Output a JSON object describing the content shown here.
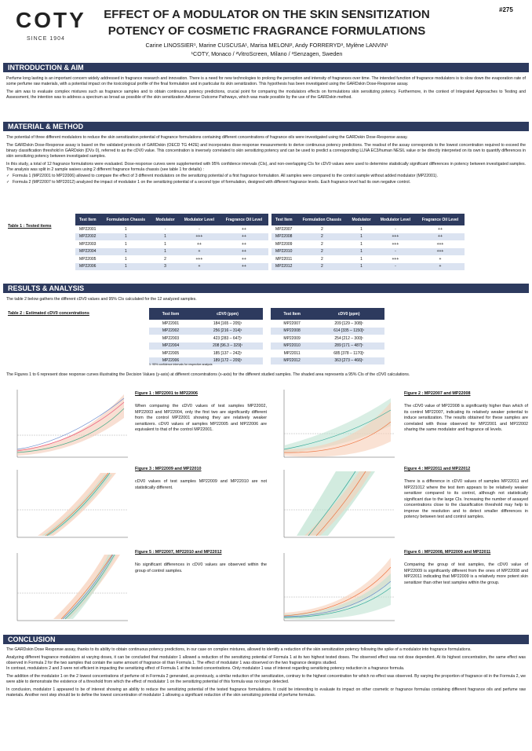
{
  "header": {
    "logo": "COTY",
    "logo_since": "SINCE 1904",
    "title_lines": [
      "EFFECT OF A MODULATOR ON THE SKIN SENSITIZATION",
      "POTENCY OF COSMETIC FRAGRANCE FORMULATIONS"
    ],
    "poster_number": "#275",
    "authors": "Carine LINOSSIER¹, Marine CUSCUSA¹, Marisa MELONI², Andy FORRERYD³, Mylène LANVIN¹",
    "affiliations": "¹COTY, Monaco / ²VitroScreen, Milano / ³Senzagen, Sweden"
  },
  "intro": {
    "heading": "INTRODUCTION & AIM",
    "paragraphs": [
      "Perfume long lasting is an important concern widely addressed in fragrance research and innovation. There is a need for new technologies to prolong the perception and intensity of fragrances over time. The intended function of fragrance modulators is to slow down the evaporation rate of some perfume raw materials, with a potential impact on the toxicological profile of the final formulation and in particular its skin sensitization. This hypothesis has been investigated using the GARDskin Dose-Response assay.",
      "The aim was to evaluate complex mixtures such as fragrance samples and to obtain continuous potency predictions, crucial point for comparing the modulators effects on formulations skin sensitizing potency. Furthermore, in the context of Integrated Approaches to Testing and Assessment, the intention was to address a spectrum as broad as possible of the skin sensitization Adverse Outcome Pathways, which was made possible by the use of the GARDskin method."
    ]
  },
  "method": {
    "heading": "MATERIAL & METHOD",
    "paragraphs": [
      "The potential of three different modulators to reduce the skin sensitization potential of fragrance formulations containing different concentrations of fragrance oils were investigated using the GARDskin Dose-Response assay.",
      "The GARDskin Dose-Response assay is based on the validated protocols of GARDskin (OECD TG 442E) and incorporates dose-response measurements to derive continuous potency predictions. The readout of the assay corresponds to the lowest concentration required to exceed the binary classification threshold in GARDskin (DV≥ 0), referred to as the cDV0 value. This concentration is inversely correlated to skin sensitizing potency and can be used to predict a corresponding LLNA EC3/human NESIL value or be directly interpreted on its own to quantify differences in skin sensitizing potency between investigated samples.",
      "In this study, a total of 12 fragrance formulations were evaluated. Dose-response curves were supplemented with 95% confidence intervals (CIs), and non-overlapping CIs for cDV0 values were used to determine statistically significant differences in potency between investigated samples. The analysis was split in 2 sample waives using 2 different fragrance formula chassis (see table 1 for details) :"
    ],
    "bullets": [
      "Formula 1 (MP22001 to MP22006) allowed to compare the effect of 3 different modulators on the sensitizing potential of a first fragrance formulation. All samples were compared to the control sample without added modulator (MP22001).",
      "Formula 2 (MP22007 to MP22012) analyzed the impact of modulator 1 on the sensitizing potential of a second type of formulation, designed with different fragrance levels. Each fragrance level had its own negative control."
    ]
  },
  "table1": {
    "label": "Table 1 : Tested items",
    "columns": [
      "Test Item",
      "Formulation Chassis",
      "Modulator",
      "Modulator Level",
      "Fragrance Oil Level"
    ],
    "rows": [
      [
        "MP22001",
        "1",
        "-",
        "-",
        "++"
      ],
      [
        "MP22002",
        "1",
        "1",
        "+++",
        "++"
      ],
      [
        "MP22003",
        "1",
        "1",
        "++",
        "++"
      ],
      [
        "MP22004",
        "1",
        "1",
        "+",
        "++"
      ],
      [
        "MP22005",
        "1",
        "2",
        "+++",
        "++"
      ],
      [
        "MP22006",
        "1",
        "3",
        "+",
        "++"
      ],
      [
        "MP22007",
        "2",
        "1",
        "-",
        "++"
      ],
      [
        "MP22008",
        "2",
        "1",
        "+++",
        "++"
      ],
      [
        "MP22009",
        "2",
        "1",
        "+++",
        "+++"
      ],
      [
        "MP22010",
        "2",
        "1",
        "-",
        "+++"
      ],
      [
        "MP22011",
        "2",
        "1",
        "+++",
        "+"
      ],
      [
        "MP22012",
        "2",
        "1",
        "-",
        "+"
      ]
    ]
  },
  "results": {
    "heading": "RESULTS & ANALYSIS",
    "intro": "The table 2 below gathers the different cDV0 values and 95% CIs calculated for the 12 analyzed samples.",
    "figures_intro": "The Figures 1 to 6 represent dose response curves illustrating the Decision Values (y-axis) at different concentrations (x-axis) for the different studied samples. The shaded area represents a 95% CIs of the cDV0 calculations."
  },
  "table2": {
    "label": "Table 2 : Estimated cDV0 concentrations",
    "columns": [
      "Test Item",
      "cDV0 (ppm)"
    ],
    "rows": [
      [
        "MP22001",
        "184 [165 – 205]¹"
      ],
      [
        "MP22002",
        "256 [216 – 314]¹"
      ],
      [
        "MP22003",
        "423 [283 – 647]¹"
      ],
      [
        "MP22004",
        "208 [96.3 – 329]¹"
      ],
      [
        "MP22005",
        "185 [137 – 242]¹"
      ],
      [
        "MP22006",
        "189 [172 – 209]¹"
      ],
      [
        "MP22007",
        "209 [129 – 308]¹"
      ],
      [
        "MP22008",
        "614 [335 – 1150]¹"
      ],
      [
        "MP22009",
        "254 [212 – 300]¹"
      ],
      [
        "MP22010",
        "289 [171 – 487]¹"
      ],
      [
        "MP22011",
        "685 [378 – 1170]¹"
      ],
      [
        "MP22012",
        "363 [273 – 466]¹"
      ]
    ],
    "footnote": "1: 95% confidence intervals for respective analysis"
  },
  "figures": [
    {
      "caption": "Figure 1 : MP22001 to MP22006",
      "text": "When comparing the cDV0 values of test samples MP22002, MP22003 and MP22004, only the first two are significantly different from the control MP22001 showing they are relatively weaker sensitizers. cDV0 values of samples MP22005 and MP22006 are equivalent to that of the control MP22001."
    },
    {
      "caption": "Figure 2 : MP22007 and MP22008",
      "text": "The cDV0 value of MP22008 is significantly higher than which of its control MP22007, indicating its relatively weaker potential to induce sensitization. The results obtained for these samples are correlated with those observed for MP22001 and MP22002 sharing the same modulator and fragrance oil levels."
    },
    {
      "caption": "Figure 3 : MP22009 and MP22010",
      "text": "cDV0 values of test samples MP22009 and MP22010 are not statistically different."
    },
    {
      "caption": "Figure 4 : MP22011 and MP22012",
      "text": "There is a difference in cDV0 values of samples MP22011 and MP221012 where the test item appears to be relatively weaker sensitizer compared to its control, although not statistically significant due to the large CIs. Increasing the number of assayed concentrations close to the classification threshold may help to improve the resolution and to detect smaller differences in potency between test and control samples."
    },
    {
      "caption": "Figure 5 : MP22007, MP22010 and MP22012",
      "text": "No significant differences in cDV0 values are observed within the group of control samples."
    },
    {
      "caption": "Figure 6 : MP22008, MP22009 and MP22011",
      "text": "Comparing the group of test samples, the cDV0 value of MP22009 is significantly different from the ones of MP22008 and MP22011 indicating that MP22009 is a relatively more potent skin sensitizer than other test samples within the group."
    }
  ],
  "conclusion": {
    "heading": "CONCLUSION",
    "paragraphs": [
      "The GARDskin Dose Response assay, thanks to its ability to obtain continuous potency predictions, in our case on complex mixtures, allowed to identify a reduction of the skin sensitization potency following the spike of a modulator into fragrance formulations.",
      "Analyzing different fragrance modulators at varying doses, it can be concluded that modulator 1 allowed a reduction of the sensitizing potential of Formula 1 at its two highest tested doses. The observed effect was not dose dependent. At its highest concentration, the same effect was observed in Formula 2 for the two samples that contain the same amount of fragrance oil than Formula 1. The effect of modulator 1 was observed on the two fragrance designs studied.",
      "In contrast, modulators 2 and 3 were not efficient in impacting the sensitizing effect of Formula 1 at the tested concentrations. Only modulator 1 was of interest regarding sensitizing potency reduction in a fragrance formula.",
      "The addition of the modulator 1 on the 2 lowest concentrations of perfume oil in Formula 2 generated, as previously, a similar reduction of the sensitization, contrary to the highest concentration for which no effect was observed. By varying the proportion of fragrance oil in the Formula 2, we were able to demonstrate the existence of a threshold from which the effect of modulator 1 on the sensitizing potential of this formula was no longer detected.",
      "In conclusion, modulator 1 appeared to be of interest showing an ability to reduce the sensitizing potential of the tested fragrance formulations. It could be interesting to evaluate its impact on other cosmetic or fragrance formulas containing different fragrance oils and perfume raw materials. Another next step should be to define the lowest concentration of modulator 1 allowing a significant reduction of the skin sensitizing potential of perfume formulas."
    ]
  }
}
